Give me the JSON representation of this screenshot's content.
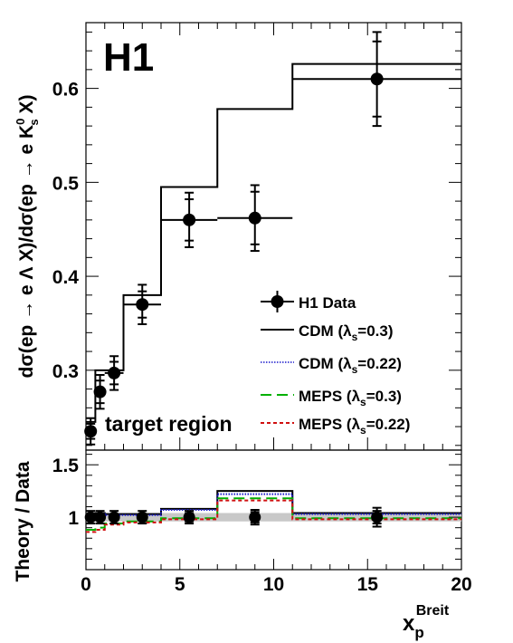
{
  "experiment_label": "H1",
  "region_label": "target region",
  "top_ylabel": {
    "main": "dσ(ep → e Λ X)/dσ(ep → e K",
    "sup": "0",
    "sub": "s",
    "tail": " X)"
  },
  "bottom_ylabel": "Theory / Data",
  "xlabel": {
    "main": "x",
    "sub": "p",
    "sup": "Breit"
  },
  "legend": {
    "data": "H1 Data",
    "lambda_symbol": "λ",
    "lambda_sub": "s",
    "models": [
      {
        "prefix": "CDM (",
        "suffix": "=0.3)"
      },
      {
        "prefix": "CDM (",
        "suffix": "=0.22)"
      },
      {
        "prefix": "MEPS (",
        "suffix": "=0.3)"
      },
      {
        "prefix": "MEPS (",
        "suffix": "=0.22)"
      }
    ]
  },
  "colors": {
    "data": "#000000",
    "cdm_03": "#000000",
    "cdm_022": "#1a1acc",
    "meps_03": "#00b000",
    "meps_022": "#d01010",
    "band": "#c8c8c8"
  },
  "chart_data": [
    {
      "type": "scatter",
      "name": "top",
      "xlim": [
        0,
        20
      ],
      "ylim": [
        0.215,
        0.67
      ],
      "yticks": [
        0.3,
        0.4,
        0.5,
        0.6
      ],
      "ytick_labels": [
        "0.3",
        "0.4",
        "0.5",
        "0.6"
      ],
      "data": {
        "name": "H1 Data",
        "bins": [
          {
            "x": 0.25,
            "xlo": 0.0,
            "xhi": 0.5,
            "y": 0.235,
            "stat": 0.008,
            "tot": 0.014
          },
          {
            "x": 0.75,
            "xlo": 0.5,
            "xhi": 1.0,
            "y": 0.277,
            "stat": 0.012,
            "tot": 0.018
          },
          {
            "x": 1.5,
            "xlo": 1.0,
            "xhi": 2.0,
            "y": 0.297,
            "stat": 0.012,
            "tot": 0.018
          },
          {
            "x": 3.0,
            "xlo": 2.0,
            "xhi": 4.0,
            "y": 0.37,
            "stat": 0.014,
            "tot": 0.021
          },
          {
            "x": 5.5,
            "xlo": 4.0,
            "xhi": 7.0,
            "y": 0.46,
            "stat": 0.022,
            "tot": 0.029
          },
          {
            "x": 9.0,
            "xlo": 7.0,
            "xhi": 11.0,
            "y": 0.462,
            "stat": 0.028,
            "tot": 0.035
          },
          {
            "x": 15.5,
            "xlo": 11.0,
            "xhi": 20.0,
            "y": 0.61,
            "stat": 0.04,
            "tot": 0.05
          }
        ]
      },
      "cdm_edges": [
        0,
        0.5,
        1.0,
        2.0,
        4.0,
        7.0,
        11.0,
        20.0
      ],
      "cdm_values": [
        0.245,
        0.3,
        0.3,
        0.38,
        0.495,
        0.578,
        0.626
      ]
    },
    {
      "type": "line",
      "name": "bottom",
      "xlim": [
        0,
        20
      ],
      "ylim": [
        0.5,
        1.64
      ],
      "yticks": [
        1.0,
        1.5
      ],
      "ytick_labels": [
        "1",
        "1.5"
      ],
      "xticks": [
        0,
        5,
        10,
        15,
        20
      ],
      "xtick_labels": [
        "0",
        "5",
        "10",
        "15",
        "20"
      ],
      "edges": [
        0,
        0.5,
        1.0,
        2.0,
        4.0,
        7.0,
        11.0,
        20.0
      ],
      "data_ratio": {
        "x": [
          0.25,
          0.75,
          1.5,
          3.0,
          5.5,
          9.0,
          15.5
        ],
        "y": [
          1.0,
          1.0,
          1.0,
          1.0,
          1.0,
          1.0,
          1.0
        ],
        "stat": [
          0.03,
          0.03,
          0.03,
          0.03,
          0.04,
          0.05,
          0.06
        ],
        "tot": [
          0.06,
          0.06,
          0.06,
          0.06,
          0.06,
          0.07,
          0.09
        ]
      },
      "band": [
        0.96,
        1.04
      ],
      "series": [
        {
          "key": "cdm_03",
          "values": [
            1.03,
            1.04,
            1.03,
            1.03,
            1.08,
            1.25,
            1.04
          ]
        },
        {
          "key": "cdm_022",
          "values": [
            1.02,
            1.03,
            1.02,
            1.02,
            1.07,
            1.22,
            1.03
          ]
        },
        {
          "key": "meps_03",
          "values": [
            0.88,
            0.9,
            0.94,
            0.96,
            0.99,
            1.18,
            0.99
          ]
        },
        {
          "key": "meps_022",
          "values": [
            0.86,
            0.88,
            0.93,
            0.95,
            0.98,
            1.16,
            0.98
          ]
        }
      ]
    }
  ]
}
